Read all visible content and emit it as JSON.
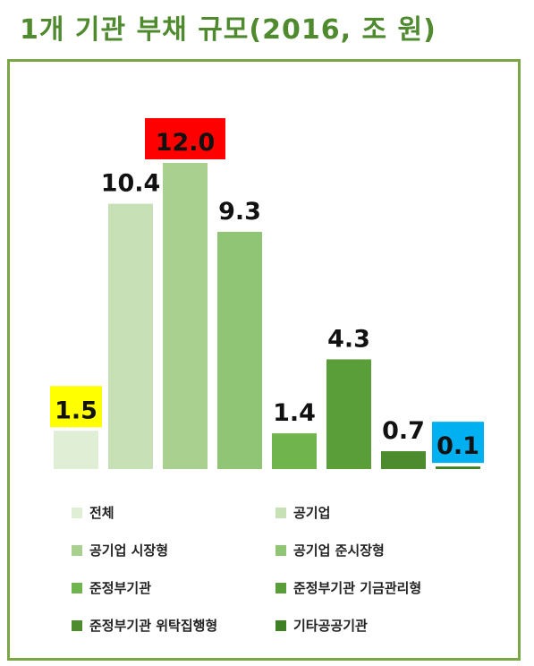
{
  "title": "1개 기관 부채 규모(2016, 조 원)",
  "chart_data": {
    "type": "bar",
    "title": "1개 기관 부채 규모(2016, 조 원)",
    "xlabel": "",
    "ylabel": "",
    "ylim": [
      0,
      12.0
    ],
    "grid": false,
    "legend_position": "bottom",
    "categories": [
      "전체",
      "공기업",
      "공기업 시장형",
      "공기업 준시장형",
      "준정부기관",
      "준정부기관 기금관리형",
      "준정부기관 위탁집행형",
      "기타공공기관"
    ],
    "values": [
      1.5,
      10.4,
      12.0,
      9.3,
      1.4,
      4.3,
      0.7,
      0.1
    ],
    "labels": [
      "1.5",
      "10.4",
      "12.0",
      "9.3",
      "1.4",
      "4.3",
      "0.7",
      "0.1"
    ],
    "colors": [
      "#dfeed5",
      "#c7e0b6",
      "#a9d08f",
      "#8fc574",
      "#6fb44c",
      "#5a9e3a",
      "#4c8c2f",
      "#3f7f26"
    ],
    "label_highlights": [
      "#ffff00",
      "",
      "#ff0000",
      "",
      "",
      "",
      "",
      "#00b0f0"
    ]
  }
}
